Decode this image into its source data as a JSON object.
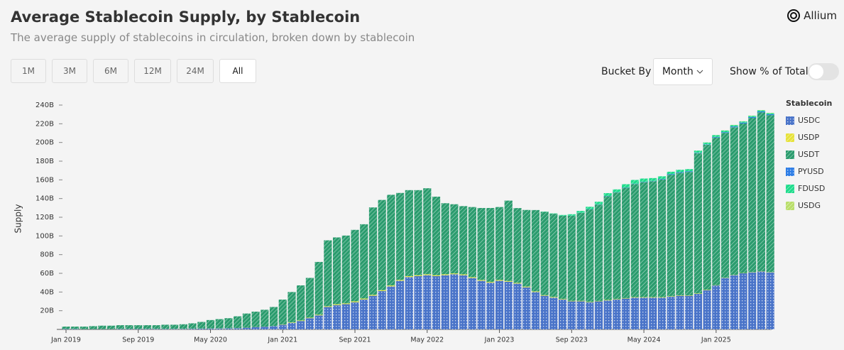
{
  "header": {
    "title": "Average Stablecoin Supply, by Stablecoin",
    "subtitle": "The average supply of stablecoins in circulation, broken down by stablecoin",
    "logo": "Allium"
  },
  "controls": {
    "ranges": [
      "1M",
      "3M",
      "6M",
      "12M",
      "24M",
      "All"
    ],
    "bucket_label": "Bucket By",
    "bucket_value": "Month",
    "toggle_label": "Show % of Total"
  },
  "chart_data": {
    "type": "stacked-bar",
    "y_label": "Supply",
    "legend_title": "Stablecoin",
    "legend": "right",
    "grid": false,
    "ylim": [
      0,
      240
    ],
    "yticks": [
      {
        "value": 20,
        "label": "20B"
      },
      {
        "value": 40,
        "label": "40B"
      },
      {
        "value": 60,
        "label": "60B"
      },
      {
        "value": 80,
        "label": "80B"
      },
      {
        "value": 100,
        "label": "100B"
      },
      {
        "value": 120,
        "label": "120B"
      },
      {
        "value": 140,
        "label": "140B"
      },
      {
        "value": 160,
        "label": "160B"
      },
      {
        "value": 180,
        "label": "180B"
      },
      {
        "value": 200,
        "label": "200B"
      },
      {
        "value": 220,
        "label": "220B"
      },
      {
        "value": 240,
        "label": "240B"
      }
    ],
    "categories": [
      "Jan 2019",
      null,
      null,
      null,
      null,
      null,
      null,
      null,
      "Sep 2019",
      null,
      null,
      null,
      null,
      null,
      null,
      null,
      "May 2020",
      null,
      null,
      null,
      null,
      null,
      null,
      null,
      "Jan 2021",
      null,
      null,
      null,
      null,
      null,
      null,
      null,
      "Sep 2021",
      null,
      null,
      null,
      null,
      null,
      null,
      null,
      "May 2022",
      null,
      null,
      null,
      null,
      null,
      null,
      null,
      "Jan 2023",
      null,
      null,
      null,
      null,
      null,
      null,
      null,
      "Sep 2023",
      null,
      null,
      null,
      null,
      null,
      null,
      null,
      "May 2024",
      null,
      null,
      null,
      null,
      null,
      null,
      null,
      "Jan 2025",
      null,
      null,
      null,
      null,
      null,
      null
    ],
    "series": [
      {
        "name": "USDC",
        "color": "#4a74c9",
        "values": [
          0.4,
          0.4,
          0.3,
          0.3,
          0.3,
          0.3,
          0.4,
          0.4,
          0.4,
          0.5,
          0.5,
          0.5,
          0.5,
          0.6,
          0.7,
          0.8,
          0.9,
          1,
          1.1,
          1.3,
          1.8,
          2.5,
          2.9,
          3.5,
          5,
          7,
          9,
          12,
          15,
          24,
          26,
          27,
          29,
          32,
          36,
          41,
          46,
          52,
          56,
          57,
          58,
          57,
          58,
          59,
          58,
          55,
          52,
          50,
          52,
          51,
          49,
          45,
          40,
          36,
          34,
          32,
          30,
          30,
          29,
          30,
          31,
          32,
          33,
          34,
          34,
          34,
          34,
          35,
          36,
          36,
          38,
          42,
          47,
          55,
          58,
          60,
          61,
          62,
          61
        ]
      },
      {
        "name": "USDP",
        "color": "#e6e23a",
        "values": [
          0.1,
          0.1,
          0.1,
          0.1,
          0.1,
          0.1,
          0.1,
          0.1,
          0.1,
          0.1,
          0.1,
          0.1,
          0.1,
          0.1,
          0.1,
          0.1,
          0.1,
          0.1,
          0.1,
          0.1,
          0.1,
          0.1,
          0.1,
          0.1,
          0.4,
          0.5,
          0.6,
          0.6,
          0.7,
          0.8,
          0.9,
          0.9,
          1,
          1,
          1,
          1,
          1,
          1,
          1,
          1,
          1,
          1,
          1,
          0.9,
          0.9,
          0.9,
          0.9,
          0.9,
          0.9,
          0.8,
          0.8,
          0.8,
          0.7,
          0.7,
          0.7,
          0.6,
          0.6,
          0.6,
          0.5,
          0.5,
          0.5,
          0.5,
          0.5,
          0.5,
          0.5,
          0.5,
          0.5,
          0.5,
          0.5,
          0.5,
          0.5,
          0.5,
          0.3,
          0.3,
          0.3,
          0.3,
          0.3,
          0.3,
          0.3
        ]
      },
      {
        "name": "USDT",
        "color": "#2b9c6e",
        "values": [
          2.5,
          2.5,
          2.6,
          3.1,
          3.6,
          3.6,
          4,
          4,
          4,
          3.9,
          3.9,
          4.4,
          4.4,
          4.8,
          5.7,
          7.1,
          9,
          9.9,
          10.8,
          12.6,
          15.1,
          16.4,
          18,
          20.4,
          26.5,
          32.5,
          37.5,
          42.5,
          56.5,
          70.5,
          71.5,
          72.5,
          76.5,
          79.5,
          93.5,
          96.5,
          97,
          93,
          92,
          91,
          92,
          84,
          76,
          74,
          73,
          75,
          77,
          79,
          78,
          86,
          80,
          82,
          87,
          89,
          89,
          89,
          91,
          94,
          99,
          103,
          111,
          114,
          118,
          121,
          123,
          124,
          126,
          130,
          131,
          132,
          150,
          155,
          158,
          155,
          158,
          160,
          165,
          170,
          168
        ]
      },
      {
        "name": "PYUSD",
        "color": "#2f7ee6",
        "values": [
          null,
          null,
          null,
          null,
          null,
          null,
          null,
          null,
          null,
          null,
          null,
          null,
          null,
          null,
          null,
          null,
          null,
          null,
          null,
          null,
          null,
          null,
          null,
          null,
          null,
          null,
          null,
          null,
          null,
          null,
          null,
          null,
          null,
          null,
          null,
          null,
          null,
          null,
          null,
          null,
          null,
          null,
          null,
          null,
          null,
          null,
          null,
          null,
          null,
          null,
          null,
          null,
          null,
          null,
          null,
          0.05,
          0.1,
          0.15,
          0.2,
          0.3,
          0.3,
          0.3,
          0.35,
          0.4,
          0.4,
          0.4,
          0.5,
          0.7,
          0.8,
          0.7,
          0.5,
          0.5,
          0.6,
          0.7,
          0.8,
          0.9,
          0.9,
          0.9,
          0.9
        ]
      },
      {
        "name": "FDUSD",
        "color": "#1fdc8c",
        "values": [
          null,
          null,
          null,
          null,
          null,
          null,
          null,
          null,
          null,
          null,
          null,
          null,
          null,
          null,
          null,
          null,
          null,
          null,
          null,
          null,
          null,
          null,
          null,
          null,
          null,
          null,
          null,
          null,
          null,
          null,
          null,
          null,
          null,
          null,
          null,
          null,
          null,
          null,
          null,
          null,
          null,
          null,
          null,
          null,
          null,
          null,
          null,
          null,
          null,
          null,
          null,
          null,
          null,
          0.3,
          0.4,
          0.8,
          1.5,
          2,
          2.5,
          2.8,
          3,
          3,
          3.5,
          4,
          3.5,
          3,
          2.8,
          2.5,
          2.5,
          2.3,
          2.3,
          2,
          2,
          1.8,
          1.5,
          1.3,
          1.3,
          1.2,
          1.2
        ]
      },
      {
        "name": "USDG",
        "color": "#b9de6a",
        "values": [
          null,
          null,
          null,
          null,
          null,
          null,
          null,
          null,
          null,
          null,
          null,
          null,
          null,
          null,
          null,
          null,
          null,
          null,
          null,
          null,
          null,
          null,
          null,
          null,
          null,
          null,
          null,
          null,
          null,
          null,
          null,
          null,
          null,
          null,
          null,
          null,
          null,
          null,
          null,
          null,
          null,
          null,
          null,
          null,
          null,
          null,
          null,
          null,
          null,
          null,
          null,
          null,
          null,
          null,
          null,
          null,
          null,
          null,
          null,
          null,
          null,
          null,
          null,
          null,
          null,
          null,
          null,
          null,
          null,
          null,
          0.05,
          0.1,
          0.1,
          0.15,
          0.2,
          0.2,
          0.25,
          0.3,
          0.3
        ]
      }
    ]
  }
}
